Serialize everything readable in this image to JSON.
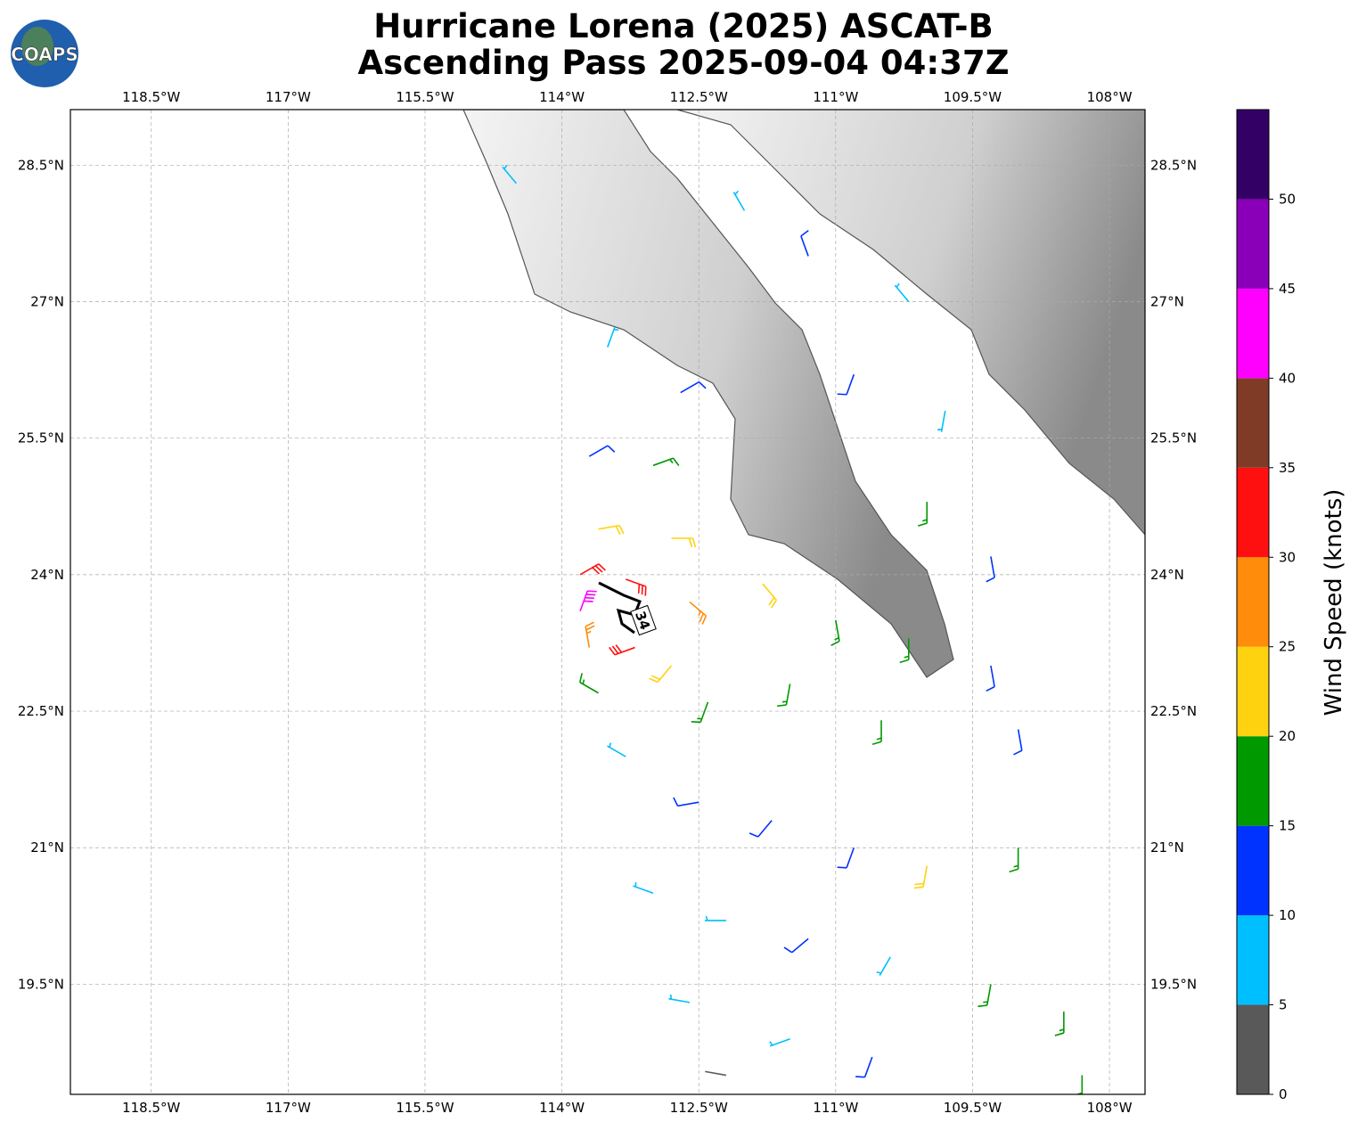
{
  "header": {
    "title_line1": "Hurricane Lorena (2025) ASCAT-B",
    "title_line2": "Ascending Pass 2025-09-04 04:37Z",
    "logo": "COAPS"
  },
  "map": {
    "lonlim": [
      -119.386,
      -107.61
    ],
    "latlim": [
      18.29,
      29.11
    ],
    "lon_ticks": [
      {
        "value": -118.5,
        "label": "118.5°W"
      },
      {
        "value": -117,
        "label": "117°W"
      },
      {
        "value": -115.5,
        "label": "115.5°W"
      },
      {
        "value": -114,
        "label": "114°W"
      },
      {
        "value": -112.5,
        "label": "112.5°W"
      },
      {
        "value": -111,
        "label": "111°W"
      },
      {
        "value": -109.5,
        "label": "109.5°W"
      },
      {
        "value": -108,
        "label": "108°W"
      }
    ],
    "lat_ticks": [
      {
        "value": 28.5,
        "label": "28.5°N"
      },
      {
        "value": 27,
        "label": "27°N"
      },
      {
        "value": 25.5,
        "label": "25.5°N"
      },
      {
        "value": 24,
        "label": "24°N"
      },
      {
        "value": 22.5,
        "label": "22.5°N"
      },
      {
        "value": 21,
        "label": "21°N"
      },
      {
        "value": 19.5,
        "label": "19.5°N"
      }
    ],
    "grid": true,
    "radius_label": "34",
    "wind_barbs": [
      {
        "lon": -114.5,
        "lat": 28.3,
        "speed": 8,
        "direction": 320
      },
      {
        "lon": -112.0,
        "lat": 28.0,
        "speed": 8,
        "direction": 330
      },
      {
        "lon": -111.3,
        "lat": 27.5,
        "speed": 12,
        "direction": 340
      },
      {
        "lon": -110.2,
        "lat": 27.0,
        "speed": 7,
        "direction": 320
      },
      {
        "lon": -113.5,
        "lat": 26.5,
        "speed": 8,
        "direction": 20
      },
      {
        "lon": -112.7,
        "lat": 26.0,
        "speed": 12,
        "direction": 60
      },
      {
        "lon": -110.8,
        "lat": 26.2,
        "speed": 12,
        "direction": 200
      },
      {
        "lon": -109.8,
        "lat": 25.8,
        "speed": 9,
        "direction": 190
      },
      {
        "lon": -113.7,
        "lat": 25.3,
        "speed": 13,
        "direction": 60
      },
      {
        "lon": -113.0,
        "lat": 25.2,
        "speed": 18,
        "direction": 70
      },
      {
        "lon": -110.0,
        "lat": 24.8,
        "speed": 16,
        "direction": 180
      },
      {
        "lon": -109.3,
        "lat": 24.2,
        "speed": 13,
        "direction": 170
      },
      {
        "lon": -113.6,
        "lat": 24.5,
        "speed": 23,
        "direction": 80
      },
      {
        "lon": -112.8,
        "lat": 24.4,
        "speed": 24,
        "direction": 90
      },
      {
        "lon": -113.8,
        "lat": 24.0,
        "speed": 32,
        "direction": 60
      },
      {
        "lon": -113.3,
        "lat": 23.95,
        "speed": 34,
        "direction": 110
      },
      {
        "lon": -112.6,
        "lat": 23.7,
        "speed": 27,
        "direction": 130
      },
      {
        "lon": -111.8,
        "lat": 23.9,
        "speed": 22,
        "direction": 140
      },
      {
        "lon": -111.0,
        "lat": 23.5,
        "speed": 18,
        "direction": 170
      },
      {
        "lon": -110.2,
        "lat": 23.3,
        "speed": 16,
        "direction": 180
      },
      {
        "lon": -109.3,
        "lat": 23.0,
        "speed": 14,
        "direction": 170
      },
      {
        "lon": -113.8,
        "lat": 23.6,
        "speed": 42,
        "direction": 20
      },
      {
        "lon": -113.7,
        "lat": 23.2,
        "speed": 28,
        "direction": 350
      },
      {
        "lon": -113.2,
        "lat": 23.2,
        "speed": 33,
        "direction": 250
      },
      {
        "lon": -112.8,
        "lat": 23.0,
        "speed": 23,
        "direction": 220
      },
      {
        "lon": -113.6,
        "lat": 22.7,
        "speed": 17,
        "direction": 300
      },
      {
        "lon": -112.4,
        "lat": 22.6,
        "speed": 16,
        "direction": 200
      },
      {
        "lon": -111.5,
        "lat": 22.8,
        "speed": 16,
        "direction": 190
      },
      {
        "lon": -110.5,
        "lat": 22.4,
        "speed": 15,
        "direction": 180
      },
      {
        "lon": -109.0,
        "lat": 22.3,
        "speed": 13,
        "direction": 170
      },
      {
        "lon": -113.3,
        "lat": 22.0,
        "speed": 8,
        "direction": 300
      },
      {
        "lon": -112.5,
        "lat": 21.5,
        "speed": 12,
        "direction": 260
      },
      {
        "lon": -111.7,
        "lat": 21.3,
        "speed": 13,
        "direction": 220
      },
      {
        "lon": -110.8,
        "lat": 21.0,
        "speed": 13,
        "direction": 200
      },
      {
        "lon": -110.0,
        "lat": 20.8,
        "speed": 22,
        "direction": 190
      },
      {
        "lon": -109.0,
        "lat": 21.0,
        "speed": 17,
        "direction": 180
      },
      {
        "lon": -113.0,
        "lat": 20.5,
        "speed": 8,
        "direction": 290
      },
      {
        "lon": -112.2,
        "lat": 20.2,
        "speed": 8,
        "direction": 270
      },
      {
        "lon": -111.3,
        "lat": 20.0,
        "speed": 12,
        "direction": 230
      },
      {
        "lon": -110.4,
        "lat": 19.8,
        "speed": 9,
        "direction": 210
      },
      {
        "lon": -109.3,
        "lat": 19.5,
        "speed": 17,
        "direction": 190
      },
      {
        "lon": -108.5,
        "lat": 19.2,
        "speed": 16,
        "direction": 180
      },
      {
        "lon": -112.6,
        "lat": 19.3,
        "speed": 7,
        "direction": 280
      },
      {
        "lon": -111.5,
        "lat": 18.9,
        "speed": 8,
        "direction": 250
      },
      {
        "lon": -110.6,
        "lat": 18.7,
        "speed": 12,
        "direction": 200
      },
      {
        "lon": -108.3,
        "lat": 18.5,
        "speed": 17,
        "direction": 180
      },
      {
        "lon": -112.2,
        "lat": 18.5,
        "speed": 3,
        "direction": 280
      }
    ]
  },
  "colorbar": {
    "label": "Wind Speed (knots)",
    "lim": [
      0,
      55
    ],
    "bounds": [
      0,
      5,
      10,
      15,
      20,
      25,
      30,
      35,
      40,
      45,
      50,
      55
    ],
    "colors": [
      "#595959",
      "#00bfff",
      "#0033ff",
      "#009900",
      "#ffd20f",
      "#ff8c0a",
      "#ff1010",
      "#7f3b26",
      "#ff00ff",
      "#8a00b8",
      "#330066"
    ],
    "ticks": [
      0,
      5,
      10,
      15,
      20,
      25,
      30,
      35,
      40,
      45,
      50
    ]
  }
}
